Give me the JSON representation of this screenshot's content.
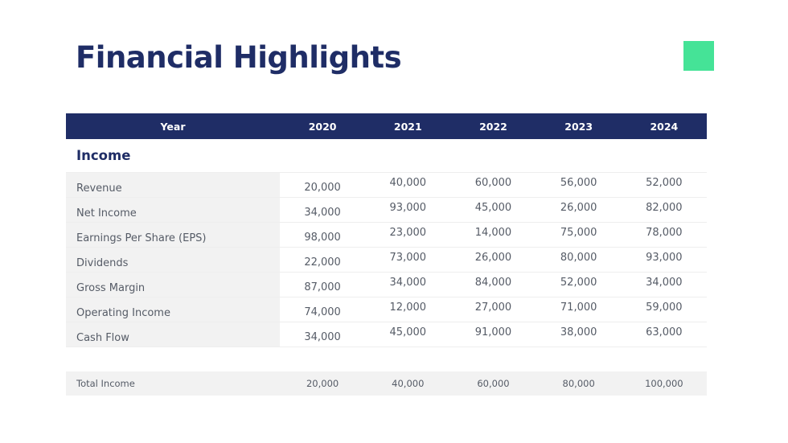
{
  "title": "Financial Highlights",
  "colors": {
    "navy": "#1f2d66",
    "accent": "#45e397",
    "row_bg": "#f2f2f2"
  },
  "table": {
    "headers": [
      "Year",
      "2020",
      "2021",
      "2022",
      "2023",
      "2024"
    ],
    "section_label": "Income",
    "rows": [
      {
        "label": "Revenue",
        "values": [
          "20,000",
          "40,000",
          "60,000",
          "56,000",
          "52,000"
        ]
      },
      {
        "label": "Net Income",
        "values": [
          "34,000",
          "93,000",
          "45,000",
          "26,000",
          "82,000"
        ]
      },
      {
        "label": "Earnings Per Share (EPS)",
        "values": [
          "98,000",
          "23,000",
          "14,000",
          "75,000",
          "78,000"
        ]
      },
      {
        "label": "Dividends",
        "values": [
          "22,000",
          "73,000",
          "26,000",
          "80,000",
          "93,000"
        ]
      },
      {
        "label": "Gross Margin",
        "values": [
          "87,000",
          "34,000",
          "84,000",
          "52,000",
          "34,000"
        ]
      },
      {
        "label": "Operating Income",
        "values": [
          "74,000",
          "12,000",
          "27,000",
          "71,000",
          "59,000"
        ]
      },
      {
        "label": "Cash Flow",
        "values": [
          "34,000",
          "45,000",
          "91,000",
          "38,000",
          "63,000"
        ]
      }
    ],
    "total": {
      "label": "Total Income",
      "values": [
        "20,000",
        "40,000",
        "60,000",
        "80,000",
        "100,000"
      ]
    }
  }
}
